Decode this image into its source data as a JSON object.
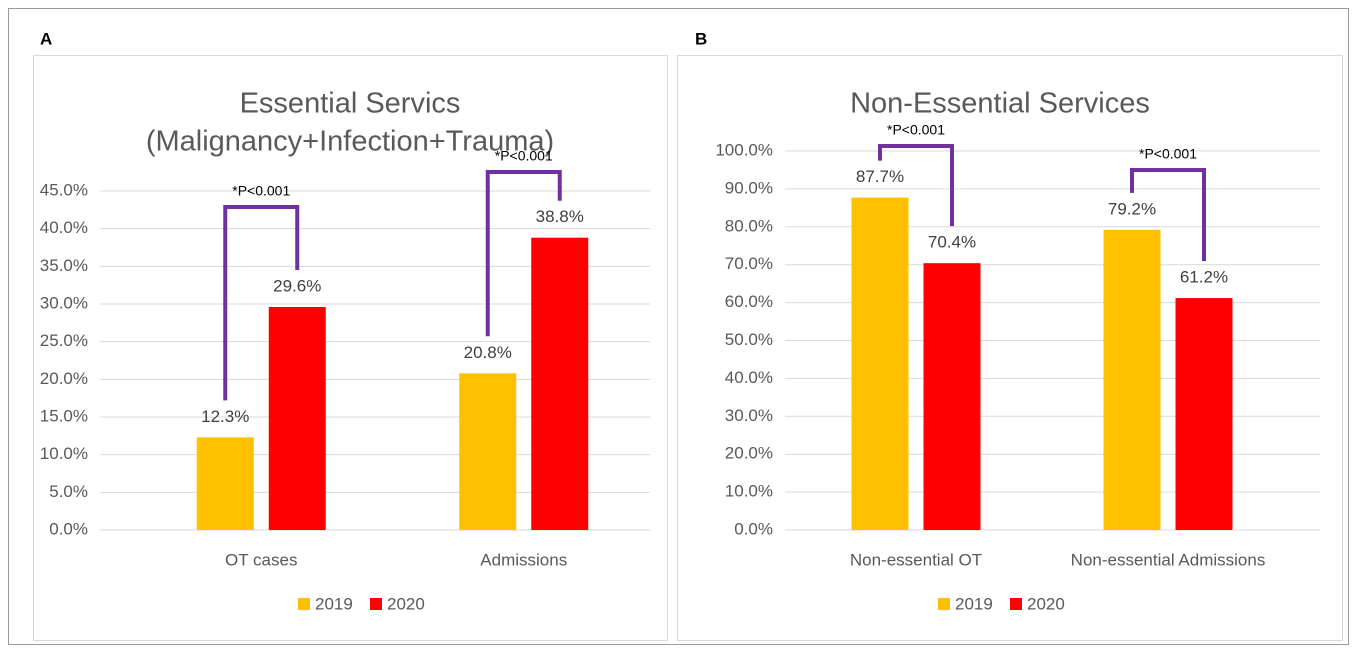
{
  "chart_data": [
    {
      "type": "bar",
      "panel_label": "A",
      "title": [
        "Essential Servics",
        "(Malignancy+Infection+Trauma)"
      ],
      "categories": [
        "OT cases",
        "Admissions"
      ],
      "series": [
        {
          "name": "2019",
          "color": "#FFC000",
          "values": [
            12.3,
            20.8
          ],
          "value_labels": [
            "12.3%",
            "20.8%"
          ]
        },
        {
          "name": "2020",
          "color": "#FF0000",
          "values": [
            29.6,
            38.8
          ],
          "value_labels": [
            "29.6%",
            "38.8%"
          ]
        }
      ],
      "ylim": [
        0,
        45
      ],
      "yticks": [
        {
          "value": 0,
          "label": "0.0%"
        },
        {
          "value": 5,
          "label": "5.0%"
        },
        {
          "value": 10,
          "label": "10.0%"
        },
        {
          "value": 15,
          "label": "15.0%"
        },
        {
          "value": 20,
          "label": "20.0%"
        },
        {
          "value": 25,
          "label": "25.0%"
        },
        {
          "value": 30,
          "label": "30.0%"
        },
        {
          "value": 35,
          "label": "35.0%"
        },
        {
          "value": 40,
          "label": "40.0%"
        },
        {
          "value": 45,
          "label": "45.0%"
        }
      ],
      "grid": true,
      "legend": "bottom",
      "annotations": [
        "*P<0.001",
        "*P<0.001"
      ]
    },
    {
      "type": "bar",
      "panel_label": "B",
      "title": [
        "Non-Essential Services"
      ],
      "categories": [
        "Non-essential OT",
        "Non-essential Admissions"
      ],
      "series": [
        {
          "name": "2019",
          "color": "#FFC000",
          "values": [
            87.7,
            79.2
          ],
          "value_labels": [
            "87.7%",
            "79.2%"
          ]
        },
        {
          "name": "2020",
          "color": "#FF0000",
          "values": [
            70.4,
            61.2
          ],
          "value_labels": [
            "70.4%",
            "61.2%"
          ]
        }
      ],
      "ylim": [
        0,
        100
      ],
      "yticks": [
        {
          "value": 0,
          "label": "0.0%"
        },
        {
          "value": 10,
          "label": "10.0%"
        },
        {
          "value": 20,
          "label": "20.0%"
        },
        {
          "value": 30,
          "label": "30.0%"
        },
        {
          "value": 40,
          "label": "40.0%"
        },
        {
          "value": 50,
          "label": "50.0%"
        },
        {
          "value": 60,
          "label": "60.0%"
        },
        {
          "value": 70,
          "label": "70.0%"
        },
        {
          "value": 80,
          "label": "80.0%"
        },
        {
          "value": 90,
          "label": "90.0%"
        },
        {
          "value": 100,
          "label": "100.0%"
        }
      ],
      "grid": true,
      "legend": "bottom",
      "annotations": [
        "*P<0.001",
        "*P<0.001"
      ]
    }
  ]
}
